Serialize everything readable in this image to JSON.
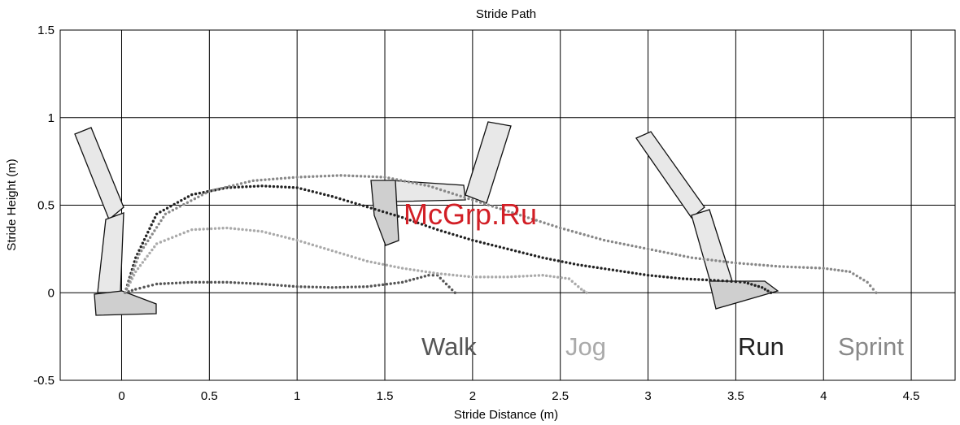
{
  "chart_data": {
    "type": "scatter",
    "title": "Stride Path",
    "xlabel": "Stride Distance (m)",
    "ylabel": "Stride Height (m)",
    "xlim": [
      -0.35,
      4.75
    ],
    "ylim": [
      -0.5,
      1.5
    ],
    "xticks": [
      "0",
      "0.5",
      "1",
      "1.5",
      "2",
      "2.5",
      "3",
      "3.5",
      "4",
      "4.5"
    ],
    "yticks": [
      "-0.5",
      "0",
      "0.5",
      "1",
      "1.5"
    ],
    "grid": true,
    "legend": "inline labels below curves",
    "series": [
      {
        "name": "Walk",
        "color": "#555555",
        "points": [
          [
            0.02,
            0.0
          ],
          [
            0.08,
            0.02
          ],
          [
            0.2,
            0.05
          ],
          [
            0.4,
            0.06
          ],
          [
            0.6,
            0.06
          ],
          [
            0.8,
            0.05
          ],
          [
            1.0,
            0.035
          ],
          [
            1.2,
            0.03
          ],
          [
            1.4,
            0.035
          ],
          [
            1.6,
            0.06
          ],
          [
            1.75,
            0.1
          ],
          [
            1.8,
            0.1
          ],
          [
            1.85,
            0.05
          ],
          [
            1.9,
            0.0
          ]
        ]
      },
      {
        "name": "Jog",
        "color": "#aaaaaa",
        "points": [
          [
            0.02,
            0.0
          ],
          [
            0.08,
            0.12
          ],
          [
            0.2,
            0.28
          ],
          [
            0.4,
            0.36
          ],
          [
            0.6,
            0.37
          ],
          [
            0.8,
            0.35
          ],
          [
            1.0,
            0.3
          ],
          [
            1.2,
            0.24
          ],
          [
            1.4,
            0.18
          ],
          [
            1.6,
            0.14
          ],
          [
            1.8,
            0.11
          ],
          [
            2.0,
            0.09
          ],
          [
            2.2,
            0.09
          ],
          [
            2.4,
            0.1
          ],
          [
            2.55,
            0.08
          ],
          [
            2.62,
            0.02
          ],
          [
            2.65,
            0.0
          ]
        ]
      },
      {
        "name": "Run",
        "color": "#222222",
        "points": [
          [
            0.02,
            0.0
          ],
          [
            0.08,
            0.2
          ],
          [
            0.2,
            0.45
          ],
          [
            0.4,
            0.56
          ],
          [
            0.6,
            0.6
          ],
          [
            0.8,
            0.61
          ],
          [
            1.0,
            0.6
          ],
          [
            1.2,
            0.55
          ],
          [
            1.4,
            0.49
          ],
          [
            1.6,
            0.43
          ],
          [
            1.8,
            0.36
          ],
          [
            2.0,
            0.3
          ],
          [
            2.2,
            0.25
          ],
          [
            2.4,
            0.2
          ],
          [
            2.6,
            0.16
          ],
          [
            2.8,
            0.13
          ],
          [
            3.0,
            0.1
          ],
          [
            3.2,
            0.08
          ],
          [
            3.4,
            0.07
          ],
          [
            3.55,
            0.06
          ],
          [
            3.65,
            0.03
          ],
          [
            3.7,
            0.0
          ]
        ]
      },
      {
        "name": "Sprint",
        "color": "#888888",
        "points": [
          [
            0.02,
            0.0
          ],
          [
            0.1,
            0.22
          ],
          [
            0.25,
            0.45
          ],
          [
            0.5,
            0.58
          ],
          [
            0.75,
            0.64
          ],
          [
            1.0,
            0.66
          ],
          [
            1.25,
            0.67
          ],
          [
            1.5,
            0.66
          ],
          [
            1.75,
            0.61
          ],
          [
            2.0,
            0.53
          ],
          [
            2.25,
            0.45
          ],
          [
            2.5,
            0.37
          ],
          [
            2.75,
            0.3
          ],
          [
            3.0,
            0.25
          ],
          [
            3.25,
            0.2
          ],
          [
            3.5,
            0.17
          ],
          [
            3.75,
            0.15
          ],
          [
            4.0,
            0.14
          ],
          [
            4.15,
            0.12
          ],
          [
            4.25,
            0.06
          ],
          [
            4.3,
            0.0
          ]
        ]
      }
    ],
    "watermark": "McGrp.Ru"
  }
}
